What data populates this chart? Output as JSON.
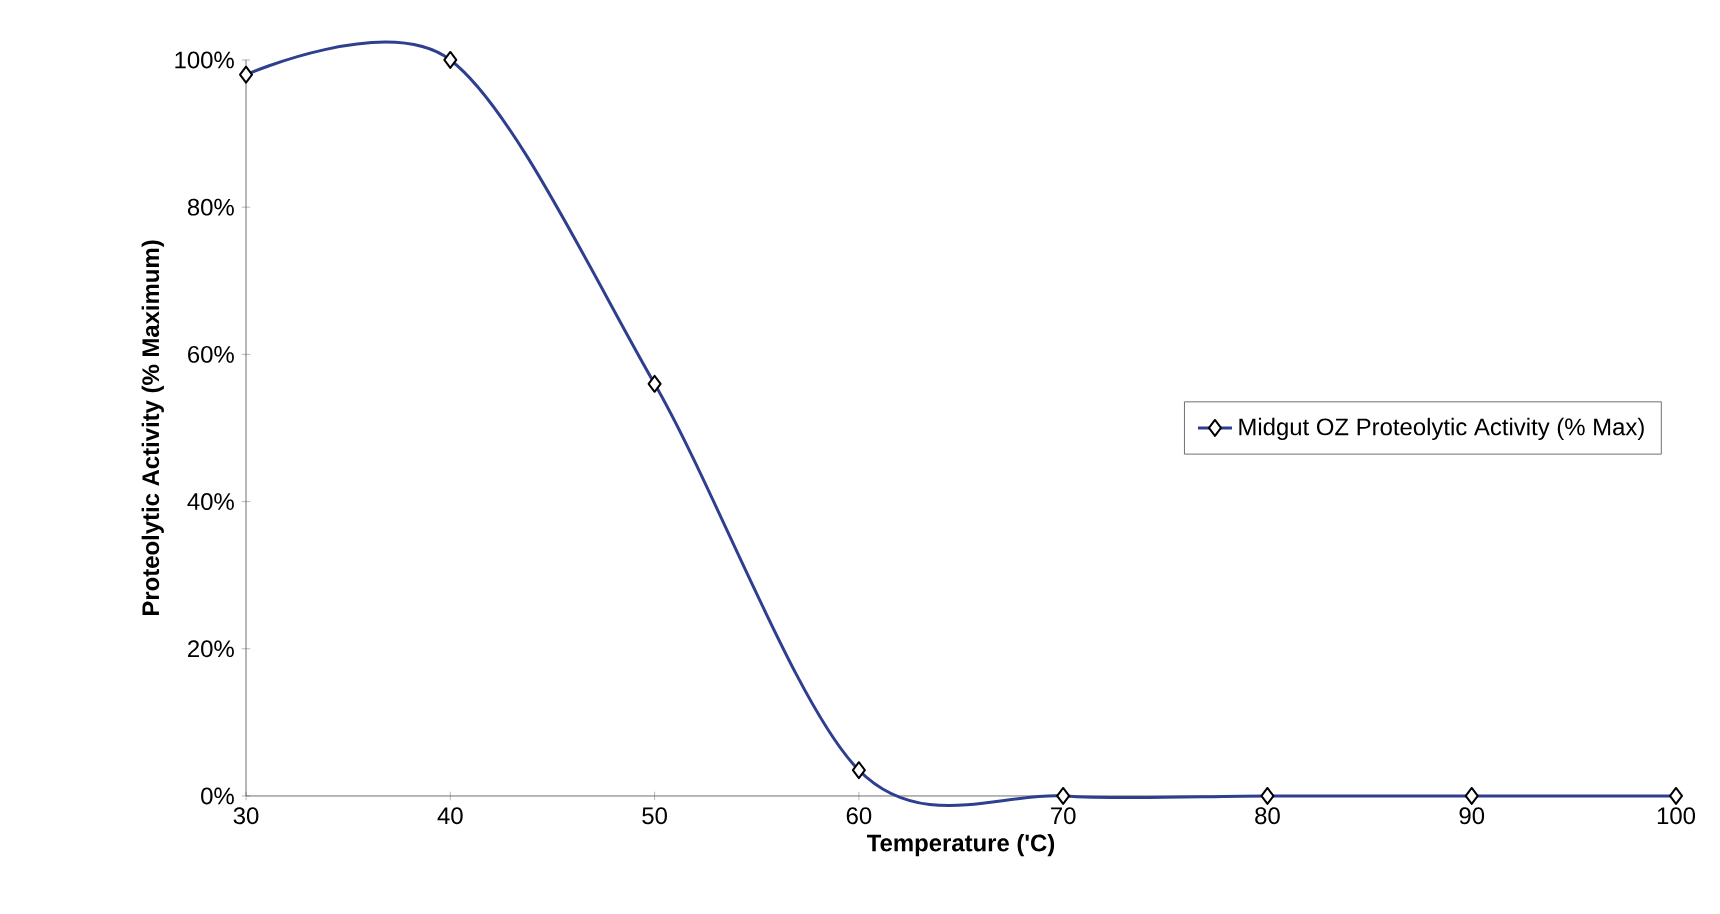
{
  "chart_data": {
    "type": "line",
    "xlabel": "Temperature ('C)",
    "ylabel": "Proteolytic Activity (% Maximum)",
    "x": [
      30,
      40,
      50,
      60,
      70,
      80,
      90,
      100
    ],
    "series": [
      {
        "name": "Midgut OZ Proteolytic Activity (% Max)",
        "color": "#2e3f8f",
        "values": [
          98,
          100,
          56,
          3.5,
          0,
          0,
          0,
          0
        ]
      }
    ],
    "xlim": [
      30,
      100
    ],
    "ylim": [
      0,
      100
    ],
    "xticks": [
      30,
      40,
      50,
      60,
      70,
      80,
      90,
      100
    ],
    "yticks": [
      {
        "value": 0,
        "label": "0%"
      },
      {
        "value": 20,
        "label": "20%"
      },
      {
        "value": 40,
        "label": "40%"
      },
      {
        "value": 60,
        "label": "60%"
      },
      {
        "value": 80,
        "label": "80%"
      },
      {
        "value": 100,
        "label": "100%"
      }
    ],
    "legend": "right",
    "marker": "diamond",
    "line_style": "solid",
    "grid": false
  }
}
